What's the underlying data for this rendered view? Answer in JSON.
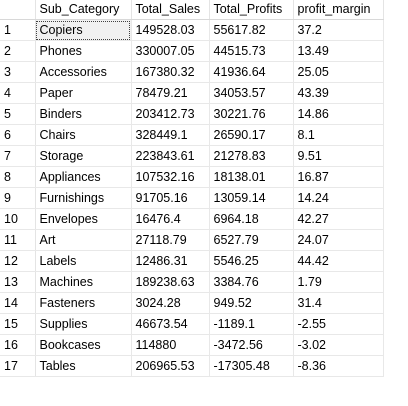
{
  "results_grid": {
    "columns": [
      "Sub_Category",
      "Total_Sales",
      "Total_Profits",
      "profit_margin"
    ],
    "rows": [
      {
        "num": "1",
        "cells": [
          "Copiers",
          "149528.03",
          "55617.82",
          "37.2"
        ]
      },
      {
        "num": "2",
        "cells": [
          "Phones",
          "330007.05",
          "44515.73",
          "13.49"
        ]
      },
      {
        "num": "3",
        "cells": [
          "Accessories",
          "167380.32",
          "41936.64",
          "25.05"
        ]
      },
      {
        "num": "4",
        "cells": [
          "Paper",
          "78479.21",
          "34053.57",
          "43.39"
        ]
      },
      {
        "num": "5",
        "cells": [
          "Binders",
          "203412.73",
          "30221.76",
          "14.86"
        ]
      },
      {
        "num": "6",
        "cells": [
          "Chairs",
          "328449.1",
          "26590.17",
          "8.1"
        ]
      },
      {
        "num": "7",
        "cells": [
          "Storage",
          "223843.61",
          "21278.83",
          "9.51"
        ]
      },
      {
        "num": "8",
        "cells": [
          "Appliances",
          "107532.16",
          "18138.01",
          "16.87"
        ]
      },
      {
        "num": "9",
        "cells": [
          "Furnishings",
          "91705.16",
          "13059.14",
          "14.24"
        ]
      },
      {
        "num": "10",
        "cells": [
          "Envelopes",
          "16476.4",
          "6964.18",
          "42.27"
        ]
      },
      {
        "num": "11",
        "cells": [
          "Art",
          "27118.79",
          "6527.79",
          "24.07"
        ]
      },
      {
        "num": "12",
        "cells": [
          "Labels",
          "12486.31",
          "5546.25",
          "44.42"
        ]
      },
      {
        "num": "13",
        "cells": [
          "Machines",
          "189238.63",
          "3384.76",
          "1.79"
        ]
      },
      {
        "num": "14",
        "cells": [
          "Fasteners",
          "3024.28",
          "949.52",
          "31.4"
        ]
      },
      {
        "num": "15",
        "cells": [
          "Supplies",
          "46673.54",
          "-1189.1",
          "-2.55"
        ]
      },
      {
        "num": "16",
        "cells": [
          "Bookcases",
          "114880",
          "-3472.56",
          "-3.02"
        ]
      },
      {
        "num": "17",
        "cells": [
          "Tables",
          "206965.53",
          "-17305.48",
          "-8.36"
        ]
      }
    ],
    "selected_cell": "Copiers"
  }
}
